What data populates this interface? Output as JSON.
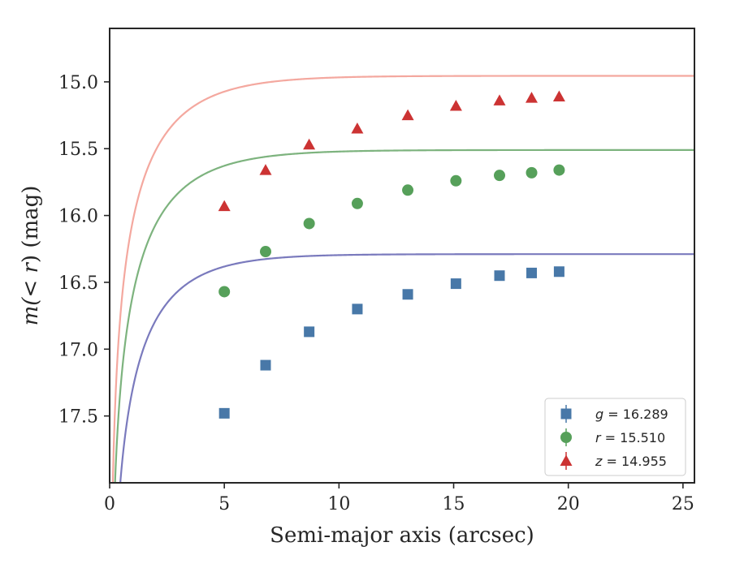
{
  "chart_data": {
    "type": "scatter",
    "title": "",
    "xlabel": "Semi-major axis (arcsec)",
    "ylabel_prefix": "m(",
    "ylabel_math": "< r",
    "ylabel_suffix": ") (mag)",
    "xlim": [
      0,
      25.5
    ],
    "ylim": [
      18.0,
      14.6
    ],
    "y_inverted": true,
    "xticks": [
      0,
      5,
      10,
      15,
      20,
      25
    ],
    "xtick_labels": [
      "0",
      "5",
      "10",
      "15",
      "20",
      "25"
    ],
    "yticks": [
      15.0,
      15.5,
      16.0,
      16.5,
      17.0,
      17.5
    ],
    "ytick_labels": [
      "15.0",
      "15.5",
      "16.0",
      "16.5",
      "17.0",
      "17.5"
    ],
    "grid": false,
    "legend_position": "bottom-right",
    "x": [
      5.0,
      6.8,
      8.7,
      10.8,
      13.0,
      15.1,
      17.0,
      18.4,
      19.6
    ],
    "series": [
      {
        "name": "g",
        "legend_var": "g",
        "legend_value": "= 16.289",
        "total_mag": 16.289,
        "marker": "square",
        "color": "#4878a8",
        "fit_color": "#7a7abd",
        "fit_scale": 2.0,
        "values": [
          17.48,
          17.12,
          16.87,
          16.7,
          16.59,
          16.51,
          16.45,
          16.43,
          16.42
        ]
      },
      {
        "name": "r",
        "legend_var": "r",
        "legend_value": "= 15.510",
        "total_mag": 15.51,
        "marker": "circle",
        "color": "#56a05a",
        "fit_color": "#7db37e",
        "fit_scale": 2.2,
        "values": [
          16.57,
          16.27,
          16.06,
          15.91,
          15.81,
          15.74,
          15.7,
          15.68,
          15.66
        ]
      },
      {
        "name": "z",
        "legend_var": "z",
        "legend_value": "= 14.955",
        "total_mag": 14.955,
        "marker": "triangle",
        "color": "#cc3333",
        "fit_color": "#f4a89f",
        "fit_scale": 2.2,
        "values": [
          15.93,
          15.66,
          15.47,
          15.35,
          15.25,
          15.18,
          15.14,
          15.12,
          15.11
        ]
      }
    ]
  }
}
